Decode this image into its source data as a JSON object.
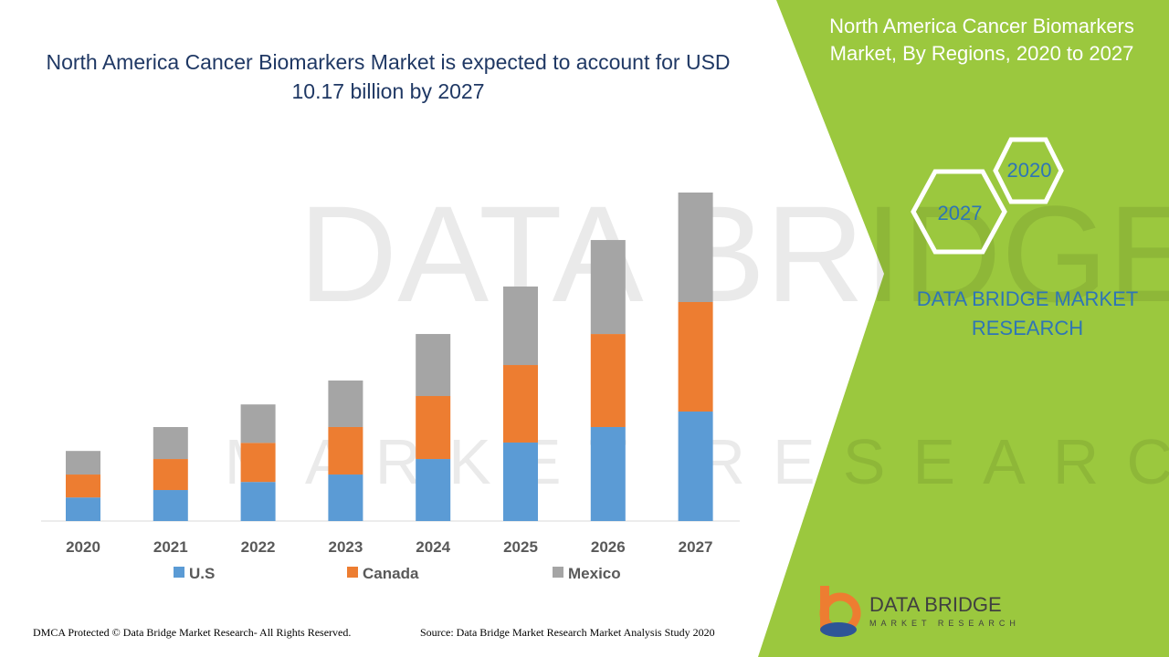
{
  "chart_data": {
    "type": "stacked-bar",
    "title": "North America Cancer Biomarkers Market is expected to account for USD 10.17 billion by 2027",
    "categories": [
      "2020",
      "2021",
      "2022",
      "2023",
      "2024",
      "2025",
      "2026",
      "2027"
    ],
    "series": [
      {
        "name": "U.S",
        "color": "#5b9bd5",
        "values": [
          0.73,
          0.96,
          1.21,
          1.44,
          1.92,
          2.43,
          2.91,
          3.39
        ]
      },
      {
        "name": "Canada",
        "color": "#ed7d31",
        "values": [
          0.71,
          0.96,
          1.21,
          1.47,
          1.95,
          2.4,
          2.88,
          3.39
        ]
      },
      {
        "name": "Mexico",
        "color": "#a5a5a5",
        "values": [
          0.73,
          0.99,
          1.19,
          1.44,
          1.92,
          2.43,
          2.91,
          3.39
        ]
      }
    ]
  },
  "panel": {
    "title": "North America Cancer Biomarkers Market, By Regions, 2020 to 2027",
    "hex_top": "2020",
    "hex_bottom": "2027",
    "brand": "DATA BRIDGE MARKET RESEARCH"
  },
  "logo": {
    "name": "DATA BRIDGE",
    "tagline": "MARKET RESEARCH"
  },
  "watermark": {
    "name": "DATA BRIDGE",
    "tagline": "MARKET RESEARCH"
  },
  "footer": {
    "left": "DMCA Protected © Data Bridge Market Research- All Rights Reserved.",
    "right": "Source: Data Bridge Market Research Market Analysis Study 2020"
  }
}
